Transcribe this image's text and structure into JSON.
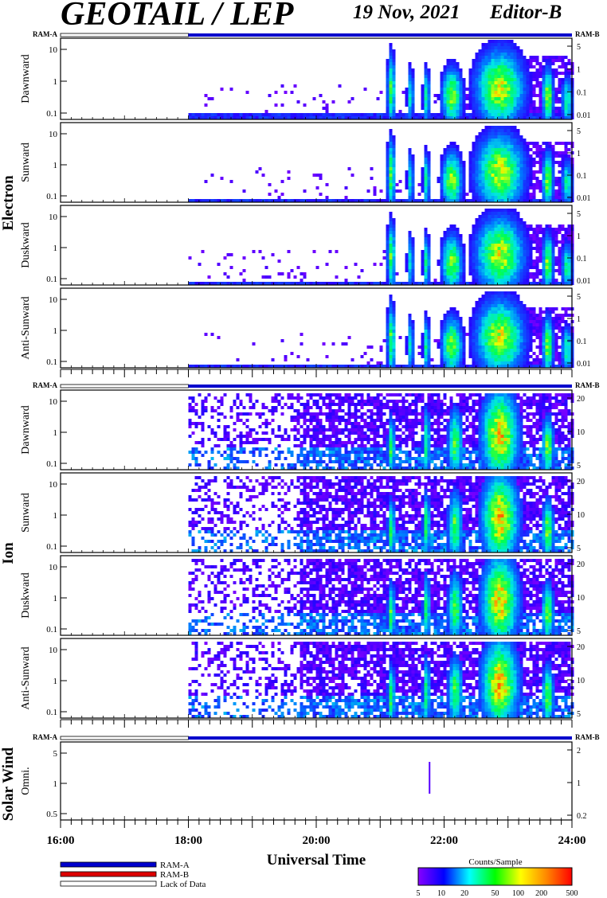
{
  "header": {
    "title": "GEOTAIL / LEP",
    "date": "19 Nov, 2021",
    "editor": "Editor-B"
  },
  "mode_labels": {
    "left": "RAM-A",
    "right": "RAM-B"
  },
  "groups": [
    {
      "name": "Electron",
      "panels": [
        "Dawnward",
        "Sunward",
        "Duskward",
        "Anti-Sunward"
      ]
    },
    {
      "name": "Ion",
      "panels": [
        "Dawnward",
        "Sunward",
        "Duskward",
        "Anti-Sunward"
      ]
    },
    {
      "name": "Solar Wind",
      "panels": [
        "Omni."
      ]
    }
  ],
  "chart_data": {
    "type": "heatmap",
    "xlabel": "Universal Time",
    "x_ticks": [
      "16:00",
      "18:00",
      "20:00",
      "22:00",
      "24:00"
    ],
    "x_range_hours": [
      16,
      24
    ],
    "data_start_hour": 18,
    "electron_left_ticks": [
      "10",
      "1",
      "0.1"
    ],
    "electron_right_ticks": [
      "5",
      "1",
      "0.1",
      "0.01"
    ],
    "ion_left_ticks": [
      "10",
      "1",
      "0.1"
    ],
    "ion_right_ticks": [
      "20",
      "10",
      "5"
    ],
    "solarwind_left_ticks": [
      "5",
      "1",
      "0.5"
    ],
    "solarwind_right_ticks": [
      "2",
      "1",
      "0.2"
    ],
    "colorbar": {
      "label": "Counts/Sample",
      "ticks": [
        "5",
        "10",
        "20",
        "50",
        "100",
        "200",
        "500"
      ],
      "colors": [
        "#8800ff",
        "#0000ff",
        "#00ffff",
        "#00ff00",
        "#ffff00",
        "#ff8800",
        "#ff0000"
      ]
    }
  },
  "legend": [
    {
      "label": "RAM-A",
      "color": "#0000cc"
    },
    {
      "label": "RAM-B",
      "color": "#dd0000"
    },
    {
      "label": "Lack of Data",
      "color": "#ffffff"
    }
  ]
}
